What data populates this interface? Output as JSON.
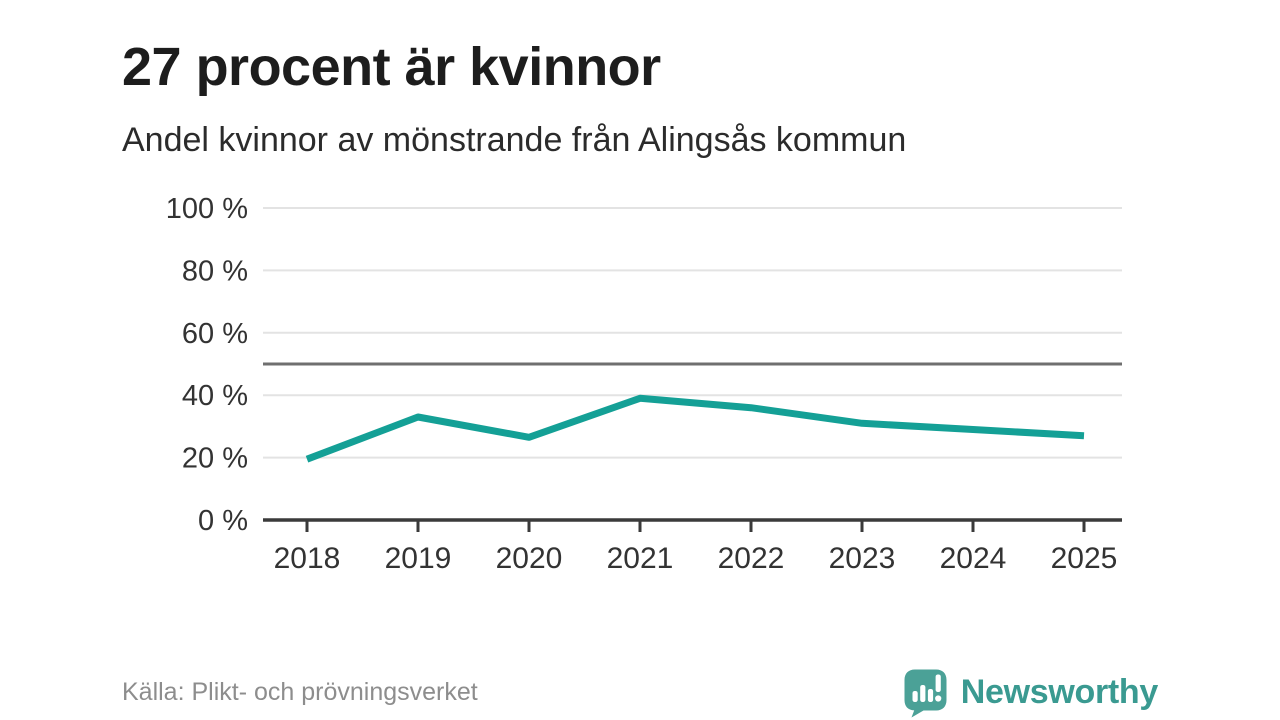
{
  "page": {
    "title": "27 procent är kvinnor",
    "subtitle": "Andel kvinnor av mönstrande från Alingsås kommun",
    "source": "Källa: Plikt- och prövningsverket",
    "brand": "Newsworthy"
  },
  "colors": {
    "line": "#14a096",
    "reference_line": "#6f6f6f",
    "gridline": "#e3e3e3",
    "axis": "#3a3a3a",
    "tick_text": "#333333",
    "source_text": "#8d8d8d",
    "brand_teal": "#4ba197"
  },
  "chart_data": {
    "type": "line",
    "title": "27 procent är kvinnor",
    "subtitle": "Andel kvinnor av mönstrande från Alingsås kommun",
    "categories": [
      "2018",
      "2019",
      "2020",
      "2021",
      "2022",
      "2023",
      "2024",
      "2025"
    ],
    "series": [
      {
        "name": "Andel kvinnor av mönstrande",
        "values": [
          19.5,
          33,
          26.5,
          39,
          36,
          31,
          29,
          27
        ]
      }
    ],
    "unit": "%",
    "ylim": [
      0,
      100
    ],
    "yticks": [
      {
        "value": 0,
        "label": "0 %"
      },
      {
        "value": 20,
        "label": "20 %"
      },
      {
        "value": 40,
        "label": "40 %"
      },
      {
        "value": 60,
        "label": "60 %"
      },
      {
        "value": 80,
        "label": "80 %"
      },
      {
        "value": 100,
        "label": "100 %"
      }
    ],
    "reference_line": 50,
    "grid": true,
    "legend": "none",
    "source": "Källa: Plikt- och prövningsverket"
  }
}
